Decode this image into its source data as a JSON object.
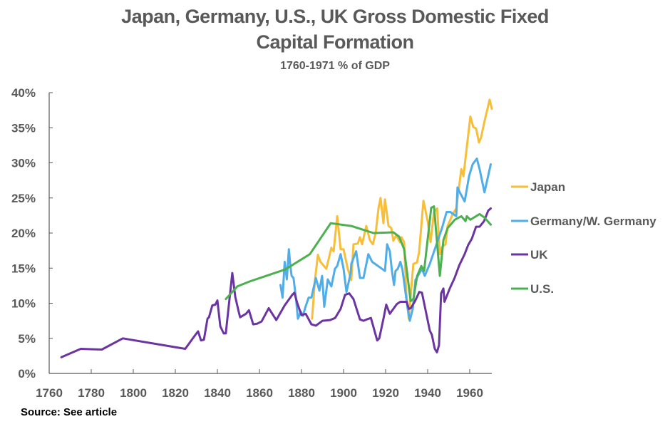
{
  "title_line1": "Japan, Germany, U.S., UK Gross Domestic Fixed",
  "title_line2": "Capital Formation",
  "subtitle": "1760-1971 % of GDP",
  "source": "Source: See article",
  "chart_data": {
    "type": "line",
    "title": "Japan, Germany, U.S., UK Gross Domestic Fixed Capital Formation",
    "subtitle": "1760-1971 % of GDP",
    "xlabel": "",
    "ylabel": "",
    "xlim": [
      1760,
      1973
    ],
    "ylim": [
      0,
      40
    ],
    "x_ticks": [
      1760,
      1780,
      1800,
      1820,
      1840,
      1860,
      1880,
      1900,
      1920,
      1940,
      1960
    ],
    "x_tick_labels": [
      "1760",
      "1780",
      "1800",
      "1820",
      "1840",
      "1860",
      "1880",
      "1900",
      "1920",
      "1940",
      "1960"
    ],
    "y_ticks": [
      0,
      5,
      10,
      15,
      20,
      25,
      30,
      35,
      40
    ],
    "y_tick_labels": [
      "0%",
      "5%",
      "10%",
      "15%",
      "20%",
      "25%",
      "30%",
      "35%",
      "40%"
    ],
    "grid": false,
    "legend_position": "right",
    "series": [
      {
        "name": "Japan",
        "color": "#F7BE3A",
        "points": [
          [
            1885,
            7.8
          ],
          [
            1886.4,
            13.3
          ],
          [
            1887.8,
            16.9
          ],
          [
            1889,
            15.9
          ],
          [
            1891.8,
            14.9
          ],
          [
            1894.2,
            17.9
          ],
          [
            1895.3,
            17.4
          ],
          [
            1897,
            22.4
          ],
          [
            1898.6,
            17.7
          ],
          [
            1900,
            17.7
          ],
          [
            1902,
            14.9
          ],
          [
            1903.7,
            13.3
          ],
          [
            1904.7,
            18.4
          ],
          [
            1906.8,
            18.5
          ],
          [
            1907.8,
            19.4
          ],
          [
            1908.8,
            18.4
          ],
          [
            1910.8,
            21.0
          ],
          [
            1912.5,
            19.0
          ],
          [
            1913.9,
            18.4
          ],
          [
            1915.3,
            20.0
          ],
          [
            1916.6,
            23.5
          ],
          [
            1917.6,
            25.0
          ],
          [
            1919,
            21.4
          ],
          [
            1919.7,
            24.8
          ],
          [
            1921.4,
            21.0
          ],
          [
            1922.7,
            20.7
          ],
          [
            1923.7,
            18.9
          ],
          [
            1925,
            19.7
          ],
          [
            1926.8,
            18.7
          ],
          [
            1927.5,
            19.4
          ],
          [
            1928.8,
            18.7
          ],
          [
            1929.8,
            11.6
          ],
          [
            1931,
            7.8
          ],
          [
            1933.2,
            15.6
          ],
          [
            1934.9,
            15.8
          ],
          [
            1935.9,
            17.2
          ],
          [
            1938,
            24.6
          ],
          [
            1940,
            21.7
          ],
          [
            1941.4,
            18.7
          ],
          [
            1943,
            23.0
          ],
          [
            1944.5,
            23.5
          ],
          [
            1945.8,
            17.0
          ],
          [
            1946.8,
            18.0
          ],
          [
            1948.5,
            18.4
          ],
          [
            1949.5,
            21.0
          ],
          [
            1951.9,
            22.7
          ],
          [
            1953.6,
            23.5
          ],
          [
            1954.6,
            25.8
          ],
          [
            1956,
            29.1
          ],
          [
            1957,
            28.1
          ],
          [
            1958.6,
            32.2
          ],
          [
            1960.3,
            36.6
          ],
          [
            1961.7,
            35.1
          ],
          [
            1963,
            34.9
          ],
          [
            1964.4,
            32.9
          ],
          [
            1965.4,
            33.6
          ],
          [
            1967,
            35.9
          ],
          [
            1969.5,
            39.0
          ],
          [
            1970.5,
            37.7
          ]
        ]
      },
      {
        "name": "Germany/W. Germany",
        "color": "#4FADEA",
        "points": [
          [
            1870,
            12.6
          ],
          [
            1871,
            10.8
          ],
          [
            1872,
            15.9
          ],
          [
            1873,
            13.4
          ],
          [
            1874,
            17.7
          ],
          [
            1874.6,
            15.6
          ],
          [
            1875.3,
            13.9
          ],
          [
            1876.2,
            13.6
          ],
          [
            1877.3,
            10.9
          ],
          [
            1878.3,
            7.8
          ],
          [
            1879.7,
            8.8
          ],
          [
            1880.7,
            8.2
          ],
          [
            1881.7,
            9.3
          ],
          [
            1883.4,
            10.8
          ],
          [
            1884.7,
            10.8
          ],
          [
            1886.8,
            13.6
          ],
          [
            1888.5,
            11.8
          ],
          [
            1889.8,
            13.9
          ],
          [
            1890.8,
            9.5
          ],
          [
            1892.5,
            13.4
          ],
          [
            1894.2,
            12.4
          ],
          [
            1895.9,
            14.9
          ],
          [
            1897,
            15.3
          ],
          [
            1898.6,
            17.0
          ],
          [
            1900,
            14.9
          ],
          [
            1901.4,
            11.6
          ],
          [
            1903.4,
            14.3
          ],
          [
            1903.7,
            15.6
          ],
          [
            1906,
            17.4
          ],
          [
            1907.8,
            13.6
          ],
          [
            1909.5,
            13.6
          ],
          [
            1911.8,
            17.0
          ],
          [
            1913.6,
            15.9
          ],
          [
            1919.7,
            14.6
          ],
          [
            1920.7,
            18.4
          ],
          [
            1922,
            17.4
          ],
          [
            1923,
            14.6
          ],
          [
            1924,
            12.6
          ],
          [
            1924.7,
            14.6
          ],
          [
            1925.8,
            14.9
          ],
          [
            1927,
            15.9
          ],
          [
            1928,
            14.8
          ],
          [
            1930.5,
            9.2
          ],
          [
            1931.5,
            7.5
          ],
          [
            1932.9,
            9.2
          ],
          [
            1934.2,
            13.3
          ],
          [
            1937.3,
            14.9
          ],
          [
            1938.6,
            13.9
          ],
          [
            1941,
            15.6
          ],
          [
            1946.8,
            20.7
          ],
          [
            1949,
            23.0
          ],
          [
            1950.8,
            23.0
          ],
          [
            1953.6,
            22.4
          ],
          [
            1954.2,
            26.5
          ],
          [
            1955.3,
            25.8
          ],
          [
            1957.6,
            24.5
          ],
          [
            1959.7,
            28.1
          ],
          [
            1961.4,
            29.8
          ],
          [
            1963.4,
            30.6
          ],
          [
            1964.7,
            29.1
          ],
          [
            1967,
            25.8
          ],
          [
            1968,
            27.1
          ],
          [
            1970,
            29.8
          ]
        ]
      },
      {
        "name": "UK",
        "color": "#6A35A3",
        "points": [
          [
            1765.8,
            2.3
          ],
          [
            1775,
            3.5
          ],
          [
            1785,
            3.4
          ],
          [
            1795,
            5.0
          ],
          [
            1824.7,
            3.5
          ],
          [
            1828.8,
            5.2
          ],
          [
            1830.8,
            6.0
          ],
          [
            1832.2,
            4.7
          ],
          [
            1833.6,
            4.8
          ],
          [
            1835.3,
            7.8
          ],
          [
            1836,
            8.0
          ],
          [
            1837.6,
            9.7
          ],
          [
            1839,
            9.8
          ],
          [
            1840,
            10.4
          ],
          [
            1840.7,
            8.5
          ],
          [
            1841.4,
            6.7
          ],
          [
            1843,
            5.7
          ],
          [
            1844,
            5.7
          ],
          [
            1847.1,
            14.3
          ],
          [
            1848.5,
            10.9
          ],
          [
            1850.2,
            8.7
          ],
          [
            1850.8,
            8.0
          ],
          [
            1853.6,
            8.5
          ],
          [
            1855,
            9.0
          ],
          [
            1857,
            7.0
          ],
          [
            1859,
            7.1
          ],
          [
            1861,
            7.4
          ],
          [
            1864.4,
            9.3
          ],
          [
            1868,
            7.6
          ],
          [
            1872,
            9.7
          ],
          [
            1875.6,
            11.2
          ],
          [
            1876.6,
            11.5
          ],
          [
            1878,
            10.0
          ],
          [
            1880,
            8.3
          ],
          [
            1882,
            8.5
          ],
          [
            1884.7,
            7.0
          ],
          [
            1886.8,
            6.8
          ],
          [
            1890,
            7.5
          ],
          [
            1893.6,
            7.6
          ],
          [
            1896,
            7.9
          ],
          [
            1898.6,
            9.2
          ],
          [
            1900.7,
            11.2
          ],
          [
            1902.7,
            11.4
          ],
          [
            1904.7,
            10.6
          ],
          [
            1907.8,
            7.7
          ],
          [
            1909.5,
            7.5
          ],
          [
            1911,
            7.7
          ],
          [
            1913,
            7.9
          ],
          [
            1916,
            4.7
          ],
          [
            1917,
            5.0
          ],
          [
            1919,
            7.8
          ],
          [
            1920.3,
            9.8
          ],
          [
            1922,
            8.5
          ],
          [
            1925.4,
            9.9
          ],
          [
            1927,
            10.2
          ],
          [
            1930,
            10.2
          ],
          [
            1931,
            9.2
          ],
          [
            1932,
            9.3
          ],
          [
            1934,
            10.3
          ],
          [
            1936,
            11.6
          ],
          [
            1937.3,
            11.5
          ],
          [
            1941,
            6.1
          ],
          [
            1942,
            5.5
          ],
          [
            1943.4,
            3.5
          ],
          [
            1944.4,
            3.0
          ],
          [
            1945.4,
            4.0
          ],
          [
            1946.4,
            11.4
          ],
          [
            1947.5,
            12.1
          ],
          [
            1948,
            10.2
          ],
          [
            1950.5,
            12.1
          ],
          [
            1952.8,
            13.6
          ],
          [
            1955,
            15.4
          ],
          [
            1957.6,
            17.0
          ],
          [
            1959.3,
            18.3
          ],
          [
            1961,
            19.2
          ],
          [
            1963,
            20.9
          ],
          [
            1964.7,
            20.9
          ],
          [
            1966.8,
            21.7
          ],
          [
            1968.8,
            23.2
          ],
          [
            1970,
            23.5
          ]
        ]
      },
      {
        "name": "U.S.",
        "color": "#4CAF50",
        "points": [
          [
            1844,
            10.6
          ],
          [
            1849.5,
            12.4
          ],
          [
            1855.3,
            13.1
          ],
          [
            1872.2,
            14.8
          ],
          [
            1884,
            17.0
          ],
          [
            1893.9,
            21.4
          ],
          [
            1903.7,
            21.0
          ],
          [
            1914.2,
            20.0
          ],
          [
            1923.7,
            20.1
          ],
          [
            1926.4,
            19.5
          ],
          [
            1928.8,
            17.7
          ],
          [
            1931.9,
            10.3
          ],
          [
            1933.2,
            10.6
          ],
          [
            1935,
            13.9
          ],
          [
            1937,
            15.3
          ],
          [
            1938.3,
            14.6
          ],
          [
            1941.7,
            23.6
          ],
          [
            1943,
            23.8
          ],
          [
            1945.8,
            13.9
          ],
          [
            1947.5,
            19.0
          ],
          [
            1949.5,
            20.7
          ],
          [
            1952.9,
            21.9
          ],
          [
            1956,
            22.4
          ],
          [
            1958,
            21.7
          ],
          [
            1958.6,
            22.4
          ],
          [
            1960.3,
            21.9
          ],
          [
            1964.7,
            22.7
          ],
          [
            1967,
            22.2
          ],
          [
            1970,
            21.2
          ]
        ]
      }
    ]
  }
}
